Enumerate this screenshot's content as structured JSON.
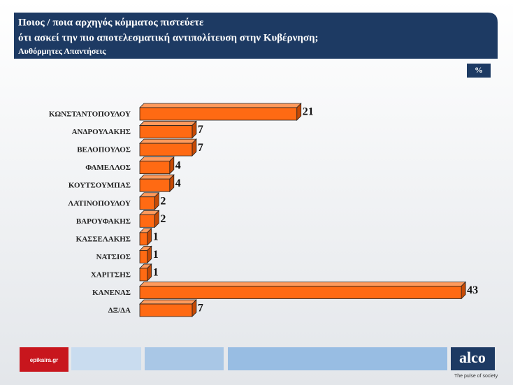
{
  "chart_data": {
    "type": "bar",
    "title": [
      "Ποιος / ποια αρχηγός κόμματος πιστεύετε",
      "ότι ασκεί την πιο αποτελεσματική αντιπολίτευση στην Κυβέρνηση;"
    ],
    "subtitle": "Αυθόρμητες Απαντήσεις",
    "unit": "%",
    "categories": [
      "ΚΩΝΣΤΑΝΤΟΠΟΥΛΟΥ",
      "ΑΝΔΡΟΥΛΑΚΗΣ",
      "ΒΕΛΟΠΟΥΛΟΣ",
      "ΦΑΜΕΛΛΟΣ",
      "ΚΟΥΤΣΟΥΜΠΑΣ",
      "ΛΑΤΙΝΟΠΟΥΛΟΥ",
      "ΒΑΡΟΥΦΑΚΗΣ",
      "ΚΑΣΣΕΛΑΚΗΣ",
      "ΝΑΤΣΙΟΣ",
      "ΧΑΡΙΤΣΗΣ",
      "ΚΑΝΕΝΑΣ",
      "ΔΞ/ΔΑ"
    ],
    "values": [
      21,
      7,
      7,
      4,
      4,
      2,
      2,
      1,
      1,
      1,
      43,
      7
    ],
    "color": "#ff6a13"
  },
  "footer": {
    "source": "epikaira.gr",
    "brand": "alco",
    "tagline": "The pulse of society"
  }
}
